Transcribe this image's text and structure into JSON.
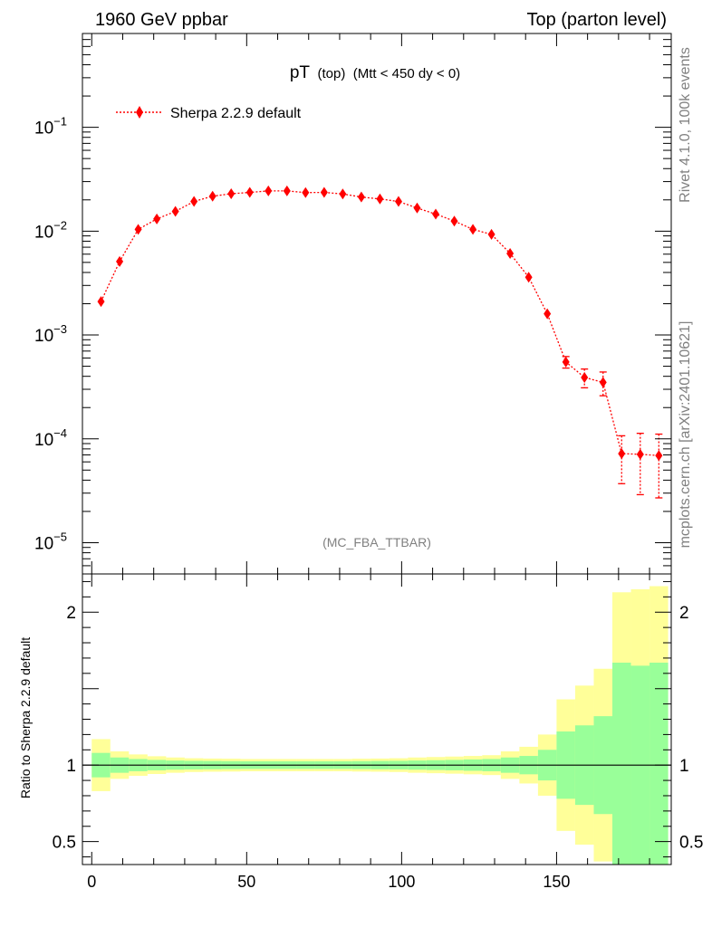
{
  "header": {
    "left": "1960 GeV ppbar",
    "right": "Top (parton level)"
  },
  "side": {
    "rivet": "Rivet 4.1.0,  100k events",
    "mcplots": "mcplots.cern.ch [arXiv:2401.10621]"
  },
  "watermark": "(MC_FBA_TTBAR)",
  "colors": {
    "series": "#ff0000",
    "band_inner": "#99ff99",
    "band_outer": "#ffff99"
  },
  "chart_data": [
    {
      "type": "scatter",
      "title_main": "pT",
      "title_sub": "(top)",
      "title_cond": "(Mtt < 450 dy < 0)",
      "legend": "Sherpa 2.2.9 default",
      "yscale": "log",
      "ylim": [
        5e-06,
        0.8
      ],
      "xlim": [
        -3,
        187
      ],
      "ytick_base": "10",
      "yticks": [
        {
          "v": 0.1,
          "exp": "−1"
        },
        {
          "v": 0.01,
          "exp": "−2"
        },
        {
          "v": 0.001,
          "exp": "−3"
        },
        {
          "v": 0.0001,
          "exp": "−4"
        },
        {
          "v": 1e-05,
          "exp": "−5"
        }
      ],
      "series": [
        {
          "name": "Sherpa 2.2.9 default",
          "x": [
            3,
            9,
            15,
            21,
            27,
            33,
            39,
            45,
            51,
            57,
            63,
            69,
            75,
            81,
            87,
            93,
            99,
            105,
            111,
            117,
            123,
            129,
            135,
            141,
            147,
            153,
            159,
            165,
            171,
            177,
            183
          ],
          "y": [
            0.0021,
            0.0051,
            0.0104,
            0.0131,
            0.0155,
            0.0193,
            0.0217,
            0.0229,
            0.0236,
            0.0244,
            0.0244,
            0.0235,
            0.0236,
            0.0228,
            0.0213,
            0.0204,
            0.0193,
            0.0167,
            0.0146,
            0.0125,
            0.0104,
            0.0093,
            0.0061,
            0.0036,
            0.0016,
            0.00055,
            0.00039,
            0.00035,
            7.2e-05,
            7.1e-05,
            6.9e-05
          ],
          "err": [
            9e-05,
            0.00015,
            0.0002,
            0.0002,
            0.0002,
            0.0002,
            0.0002,
            0.0002,
            0.0002,
            0.0002,
            0.0002,
            0.0002,
            0.0002,
            0.0002,
            0.0002,
            0.0002,
            0.0002,
            0.0002,
            0.0002,
            0.0002,
            0.0002,
            0.0002,
            0.00015,
            0.00012,
            9e-05,
            7e-05,
            8e-05,
            9e-05,
            3.5e-05,
            4.2e-05,
            4.2e-05
          ]
        }
      ]
    },
    {
      "type": "area",
      "ylabel": "Ratio to Sherpa 2.2.9 default",
      "ylim": [
        0.35,
        2.25
      ],
      "xlim": [
        -3,
        187
      ],
      "yticks": [
        {
          "v": 2,
          "label": "2"
        },
        {
          "v": 1,
          "label": "1"
        },
        {
          "v": 0.5,
          "label": "0.5"
        }
      ],
      "xticks": [
        {
          "v": 0,
          "label": "0"
        },
        {
          "v": 50,
          "label": "50"
        },
        {
          "v": 100,
          "label": "100"
        },
        {
          "v": 150,
          "label": "150"
        }
      ],
      "bin_edges": [
        0,
        6,
        12,
        18,
        24,
        30,
        36,
        42,
        48,
        54,
        60,
        66,
        72,
        78,
        84,
        90,
        96,
        102,
        108,
        114,
        120,
        126,
        132,
        138,
        144,
        150,
        156,
        162,
        168,
        174,
        180,
        186
      ],
      "inner_lo": [
        0.92,
        0.95,
        0.96,
        0.966,
        0.97,
        0.972,
        0.973,
        0.974,
        0.975,
        0.975,
        0.975,
        0.975,
        0.975,
        0.975,
        0.974,
        0.973,
        0.972,
        0.97,
        0.968,
        0.966,
        0.963,
        0.96,
        0.95,
        0.94,
        0.9,
        0.78,
        0.74,
        0.68,
        0.33,
        0.35,
        0.33
      ],
      "inner_hi": [
        1.08,
        1.05,
        1.04,
        1.034,
        1.03,
        1.028,
        1.027,
        1.026,
        1.025,
        1.025,
        1.025,
        1.025,
        1.025,
        1.025,
        1.026,
        1.027,
        1.028,
        1.03,
        1.032,
        1.034,
        1.037,
        1.04,
        1.05,
        1.06,
        1.1,
        1.22,
        1.26,
        1.32,
        1.67,
        1.65,
        1.67
      ],
      "outer_lo": [
        0.83,
        0.91,
        0.93,
        0.942,
        0.95,
        0.955,
        0.957,
        0.958,
        0.96,
        0.96,
        0.96,
        0.96,
        0.96,
        0.96,
        0.958,
        0.957,
        0.955,
        0.95,
        0.947,
        0.944,
        0.94,
        0.935,
        0.91,
        0.88,
        0.8,
        0.57,
        0.48,
        0.37,
        0.33,
        0.33,
        0.33
      ],
      "outer_hi": [
        1.17,
        1.09,
        1.07,
        1.058,
        1.05,
        1.045,
        1.043,
        1.042,
        1.04,
        1.04,
        1.04,
        1.04,
        1.04,
        1.04,
        1.042,
        1.043,
        1.045,
        1.05,
        1.053,
        1.056,
        1.06,
        1.065,
        1.09,
        1.12,
        1.2,
        1.43,
        1.52,
        1.63,
        2.13,
        2.15,
        2.17
      ]
    }
  ]
}
